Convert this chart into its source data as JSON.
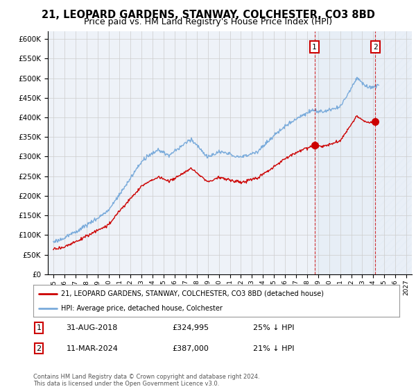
{
  "title": "21, LEOPARD GARDENS, STANWAY, COLCHESTER, CO3 8BD",
  "subtitle": "Price paid vs. HM Land Registry's House Price Index (HPI)",
  "title_fontsize": 10.5,
  "subtitle_fontsize": 9,
  "ylim": [
    0,
    620000
  ],
  "yticks": [
    0,
    50000,
    100000,
    150000,
    200000,
    250000,
    300000,
    350000,
    400000,
    450000,
    500000,
    550000,
    600000
  ],
  "xlim_start": 1994.5,
  "xlim_end": 2027.5,
  "hpi_color": "#7aabdb",
  "property_color": "#cc0000",
  "sale1_date": "31-AUG-2018",
  "sale1_price": 324995,
  "sale1_pct": "25% ↓ HPI",
  "sale1_x": 2018.67,
  "sale2_date": "11-MAR-2024",
  "sale2_price": 387000,
  "sale2_pct": "21% ↓ HPI",
  "sale2_x": 2024.19,
  "legend_label1": "21, LEOPARD GARDENS, STANWAY, COLCHESTER, CO3 8BD (detached house)",
  "legend_label2": "HPI: Average price, detached house, Colchester",
  "footer": "Contains HM Land Registry data © Crown copyright and database right 2024.\nThis data is licensed under the Open Government Licence v3.0.",
  "bg_color": "#ffffff",
  "plot_bg_color": "#eef2f8",
  "grid_color": "#cccccc",
  "shade_color": "#dce8f5",
  "hatch_color": "#dce8f5",
  "hatch_start": 2024.19
}
